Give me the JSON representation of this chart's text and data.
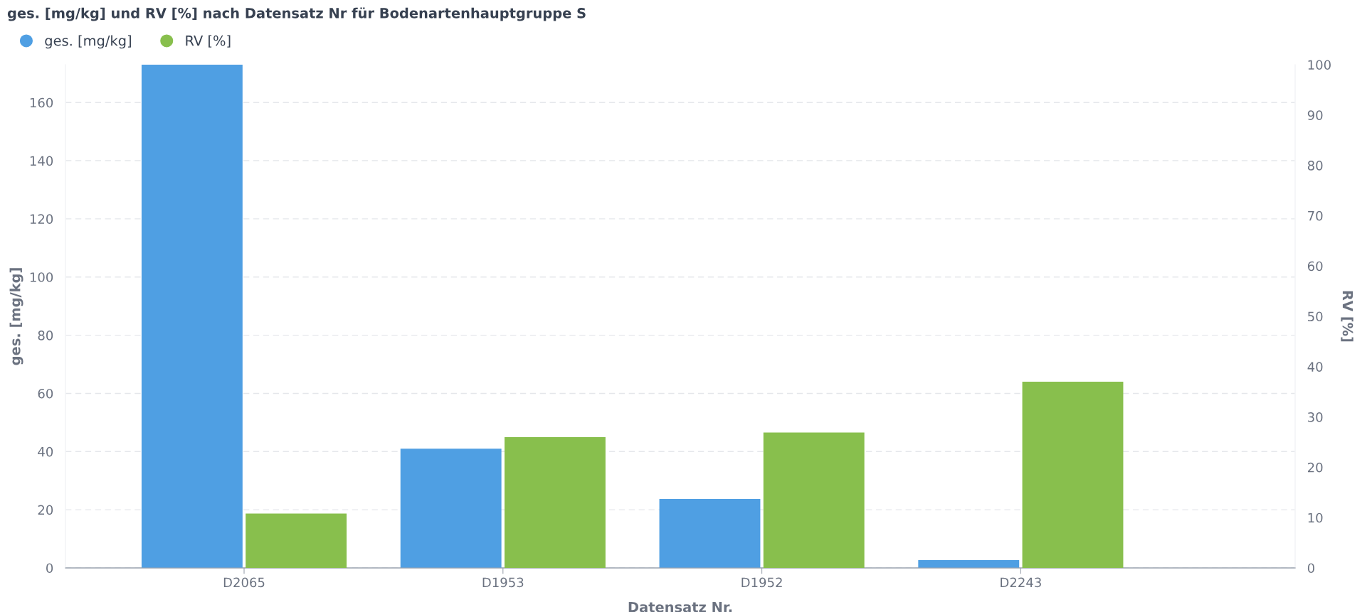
{
  "chart_data": {
    "type": "bar",
    "title": "ges. [mg/kg] und RV [%] nach Datensatz Nr für Bodenartenhauptgruppe S",
    "xlabel": "Datensatz Nr.",
    "ylabel": "ges. [mg/kg]",
    "y2label": "RV [%]",
    "categories": [
      "D2065",
      "D1953",
      "D1952",
      "D2243"
    ],
    "series": [
      {
        "name": "ges. [mg/kg]",
        "color": "#4f9fe3",
        "values": [
          173,
          41,
          23.7,
          2.7
        ]
      },
      {
        "name": "RV [%]",
        "color": "#88bf4d",
        "values": [
          10.8,
          26,
          26.9,
          37
        ],
        "axis": "y2"
      }
    ],
    "ylim": [
      0,
      173
    ],
    "yticks": [
      0,
      20,
      40,
      60,
      80,
      100,
      120,
      140,
      160
    ],
    "y2lim": [
      0,
      100
    ],
    "y2ticks": [
      0,
      10,
      20,
      30,
      40,
      50,
      60,
      70,
      80,
      90,
      100
    ],
    "grid": "y",
    "legend": "top left",
    "marker": "circle"
  }
}
